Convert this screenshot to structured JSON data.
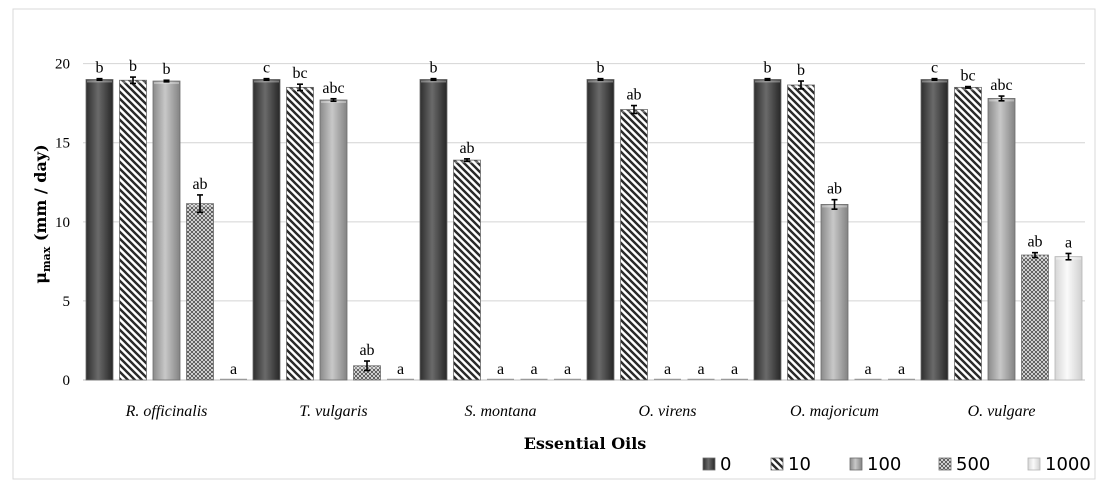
{
  "chart_data": {
    "type": "bar",
    "xlabel": "Essential Oils",
    "ylabel_main": "μ",
    "ylabel_sub": "max",
    "ylabel_rest": " (mm / day)",
    "ylim": [
      0,
      22
    ],
    "yticks": [
      0,
      5,
      10,
      15,
      20
    ],
    "grid": true,
    "legend_position": "bottom-right",
    "categories": [
      "R. officinalis",
      "T. vulgaris",
      "S. montana",
      "O. virens",
      "O. majoricum",
      "O. vulgare"
    ],
    "series": [
      {
        "name": "0",
        "pattern": "dark",
        "values": [
          19.0,
          19.0,
          19.0,
          19.0,
          19.0,
          19.0
        ],
        "errors": [
          0.05,
          0.05,
          0.05,
          0.05,
          0.05,
          0.05
        ],
        "labels": [
          "b",
          "c",
          "b",
          "b",
          "b",
          "c"
        ]
      },
      {
        "name": "10",
        "pattern": "stripe",
        "values": [
          18.95,
          18.5,
          13.9,
          17.1,
          18.65,
          18.5
        ],
        "errors": [
          0.2,
          0.2,
          0.08,
          0.25,
          0.25,
          0.05
        ],
        "labels": [
          "b",
          "bc",
          "ab",
          "ab",
          "b",
          "bc"
        ]
      },
      {
        "name": "100",
        "pattern": "gray",
        "values": [
          18.9,
          17.7,
          0,
          0,
          11.1,
          17.8
        ],
        "errors": [
          0.05,
          0.08,
          0,
          0,
          0.3,
          0.15
        ],
        "labels": [
          "b",
          "abc",
          "a",
          "a",
          "ab",
          "abc"
        ]
      },
      {
        "name": "500",
        "pattern": "checker",
        "values": [
          11.15,
          0.9,
          0,
          0,
          0,
          7.9
        ],
        "errors": [
          0.55,
          0.3,
          0,
          0,
          0,
          0.15
        ],
        "labels": [
          "ab",
          "ab",
          "a",
          "a",
          "a",
          "ab"
        ]
      },
      {
        "name": "1000",
        "pattern": "light",
        "values": [
          0,
          0,
          0,
          0,
          0,
          7.8
        ],
        "errors": [
          0,
          0,
          0,
          0,
          0,
          0.2
        ],
        "labels": [
          "a",
          "a",
          "a",
          "a",
          "a",
          "a"
        ]
      }
    ]
  }
}
